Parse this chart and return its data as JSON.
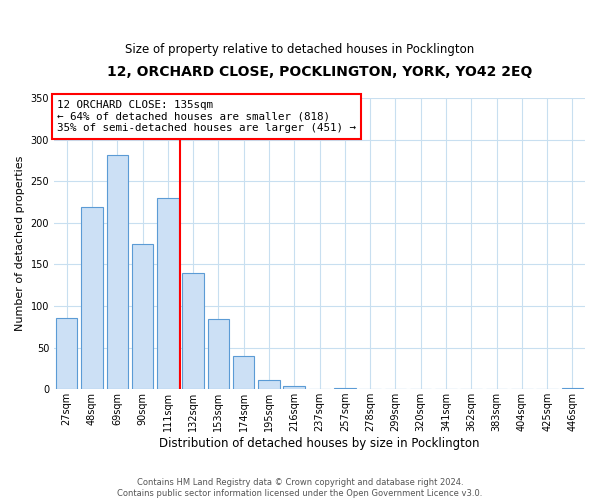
{
  "title": "12, ORCHARD CLOSE, POCKLINGTON, YORK, YO42 2EQ",
  "subtitle": "Size of property relative to detached houses in Pocklington",
  "xlabel": "Distribution of detached houses by size in Pocklington",
  "ylabel": "Number of detached properties",
  "bar_labels": [
    "27sqm",
    "48sqm",
    "69sqm",
    "90sqm",
    "111sqm",
    "132sqm",
    "153sqm",
    "174sqm",
    "195sqm",
    "216sqm",
    "237sqm",
    "257sqm",
    "278sqm",
    "299sqm",
    "320sqm",
    "341sqm",
    "362sqm",
    "383sqm",
    "404sqm",
    "425sqm",
    "446sqm"
  ],
  "bar_values": [
    86,
    219,
    282,
    175,
    230,
    140,
    85,
    40,
    11,
    4,
    0,
    1,
    0,
    0,
    0,
    0,
    0,
    0,
    0,
    0,
    1
  ],
  "bar_color": "#cce0f5",
  "bar_edge_color": "#5b9bd5",
  "reference_line_x": 4.5,
  "annotation_title": "12 ORCHARD CLOSE: 135sqm",
  "annotation_line1": "← 64% of detached houses are smaller (818)",
  "annotation_line2": "35% of semi-detached houses are larger (451) →",
  "ylim": [
    0,
    350
  ],
  "yticks": [
    0,
    50,
    100,
    150,
    200,
    250,
    300,
    350
  ],
  "footer_line1": "Contains HM Land Registry data © Crown copyright and database right 2024.",
  "footer_line2": "Contains public sector information licensed under the Open Government Licence v3.0.",
  "background_color": "#ffffff",
  "grid_color": "#c8dff0",
  "title_fontsize": 10,
  "subtitle_fontsize": 8.5,
  "ylabel_fontsize": 8,
  "xlabel_fontsize": 8.5,
  "tick_fontsize": 7,
  "footer_fontsize": 6
}
